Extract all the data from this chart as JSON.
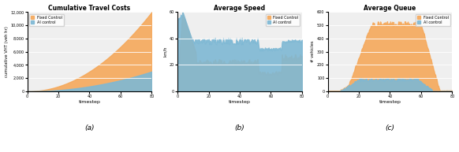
{
  "title_a": "Cumulative Travel Costs",
  "title_b": "Average Speed",
  "title_c": "Average Queue",
  "xlabel": "timestep",
  "ylabel_a": "cumulative VHT (veh hr)",
  "ylabel_b": "km/h",
  "ylabel_c": "# vehicles",
  "label_fixed": "Fixed Control",
  "label_ai": "AI control",
  "color_fixed": "#F5A85A",
  "color_ai": "#7EB8D4",
  "color_bg": "#efefef",
  "subtitle_a": "(a)",
  "subtitle_b": "(b)",
  "subtitle_c": "(c)",
  "n_points": 200,
  "t_max": 80,
  "ylim_a": 12000,
  "ylim_b": 60,
  "ylim_c": 600,
  "yticks_a": [
    0,
    2000,
    4000,
    6000,
    8000,
    10000,
    12000
  ],
  "yticks_b": [
    0,
    20,
    40,
    60
  ],
  "yticks_c": [
    0,
    100,
    200,
    300,
    400,
    500,
    600
  ],
  "xticks": [
    0,
    20,
    40,
    60,
    80
  ]
}
